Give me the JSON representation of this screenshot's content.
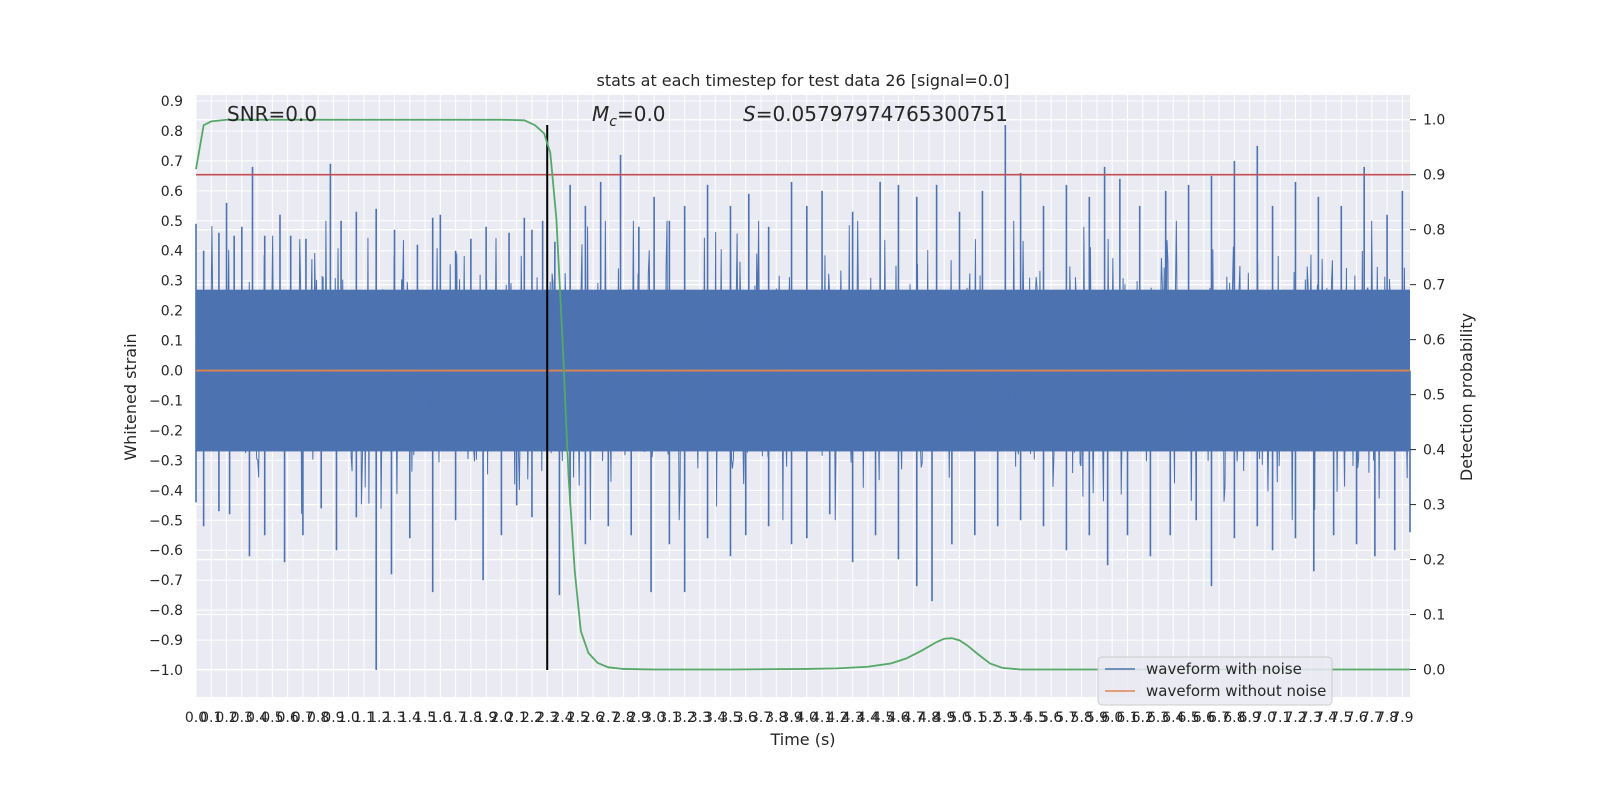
{
  "chart_data": {
    "type": "line",
    "title": "stats at each timestep for test data 26 [signal=0.0]",
    "xlabel": "Time (s)",
    "ylabel": "Whitened strain",
    "ylabel_right": "Detection probability",
    "xlim": [
      0.0,
      7.95
    ],
    "ylim": [
      -1.09,
      0.92
    ],
    "ylim_right": [
      -0.05,
      1.045
    ],
    "grid": true,
    "legend_position": "lower right",
    "x_ticks": [
      "0.0",
      "0.1",
      "0.2",
      "0.3",
      "0.4",
      "0.5",
      "0.6",
      "0.7",
      "0.8",
      "0.9",
      "1.0",
      "1.1",
      "1.2",
      "1.3",
      "1.4",
      "1.5",
      "1.6",
      "1.7",
      "1.8",
      "1.9",
      "2.0",
      "2.1",
      "2.2",
      "2.3",
      "2.4",
      "2.5",
      "2.6",
      "2.7",
      "2.8",
      "2.9",
      "3.0",
      "3.1",
      "3.2",
      "3.3",
      "3.4",
      "3.5",
      "3.6",
      "3.7",
      "3.8",
      "3.9",
      "4.0",
      "4.1",
      "4.2",
      "4.3",
      "4.4",
      "4.5",
      "4.6",
      "4.7",
      "4.8",
      "4.9",
      "5.0",
      "5.1",
      "5.2",
      "5.3",
      "5.4",
      "5.5",
      "5.6",
      "5.7",
      "5.8",
      "5.9",
      "6.0",
      "6.1",
      "6.2",
      "6.3",
      "6.4",
      "6.5",
      "6.6",
      "6.7",
      "6.8",
      "6.9",
      "7.0",
      "7.1",
      "7.2",
      "7.3",
      "7.4",
      "7.5",
      "7.6",
      "7.7",
      "7.8",
      "7.9"
    ],
    "y_ticks_left": [
      "0.9",
      "0.8",
      "0.7",
      "0.6",
      "0.5",
      "0.4",
      "0.3",
      "0.2",
      "0.1",
      "0.0",
      "−0.1",
      "−0.2",
      "−0.3",
      "−0.4",
      "−0.5",
      "−0.6",
      "−0.7",
      "−0.8",
      "−0.9",
      "−1.0"
    ],
    "y_ticks_right": [
      "1.0",
      "0.9",
      "0.8",
      "0.7",
      "0.6",
      "0.5",
      "0.4",
      "0.3",
      "0.2",
      "0.1",
      "0.0"
    ],
    "annotations": {
      "snr": "SNR=0.0",
      "mc_symbol": "M",
      "mc_sub": "c",
      "mc_value": "=0.0",
      "s_symbol": "S",
      "s_value": "=0.05797974765300751"
    },
    "threshold": {
      "axis": "right",
      "value": 0.9,
      "color": "#c44e52"
    },
    "marker_vline": {
      "x": 2.3,
      "y_from": -1.0,
      "y_to": 0.82,
      "color": "#000000"
    },
    "series": [
      {
        "name": "waveform with noise",
        "color": "#4c72b0",
        "axis": "left",
        "kind": "noise",
        "typical_amplitude": 0.27,
        "peak_max": [
          [
            0.0,
            0.49
          ],
          [
            0.05,
            0.4
          ],
          [
            0.15,
            0.46
          ],
          [
            0.2,
            0.56
          ],
          [
            0.25,
            0.45
          ],
          [
            0.3,
            0.48
          ],
          [
            0.37,
            0.68
          ],
          [
            0.45,
            0.45
          ],
          [
            0.55,
            0.52
          ],
          [
            0.62,
            0.45
          ],
          [
            0.72,
            0.44
          ],
          [
            0.88,
            0.69
          ],
          [
            0.95,
            0.5
          ],
          [
            1.05,
            0.53
          ],
          [
            1.18,
            0.54
          ],
          [
            1.3,
            0.47
          ],
          [
            1.45,
            0.42
          ],
          [
            1.55,
            0.51
          ],
          [
            1.6,
            0.52
          ],
          [
            1.7,
            0.4
          ],
          [
            1.8,
            0.44
          ],
          [
            1.9,
            0.48
          ],
          [
            2.05,
            0.46
          ],
          [
            2.15,
            0.51
          ],
          [
            2.2,
            0.47
          ],
          [
            2.27,
            0.5
          ],
          [
            2.35,
            0.43
          ],
          [
            2.45,
            0.62
          ],
          [
            2.55,
            0.55
          ],
          [
            2.65,
            0.63
          ],
          [
            2.78,
            0.72
          ],
          [
            2.9,
            0.48
          ],
          [
            3.0,
            0.58
          ],
          [
            3.1,
            0.5
          ],
          [
            3.2,
            0.55
          ],
          [
            3.35,
            0.62
          ],
          [
            3.5,
            0.55
          ],
          [
            3.62,
            0.59
          ],
          [
            3.75,
            0.48
          ],
          [
            3.9,
            0.63
          ],
          [
            4.0,
            0.55
          ],
          [
            4.1,
            0.6
          ],
          [
            4.3,
            0.53
          ],
          [
            4.48,
            0.63
          ],
          [
            4.6,
            0.62
          ],
          [
            4.72,
            0.58
          ],
          [
            4.85,
            0.62
          ],
          [
            5.0,
            0.53
          ],
          [
            5.15,
            0.6
          ],
          [
            5.3,
            0.82
          ],
          [
            5.4,
            0.66
          ],
          [
            5.55,
            0.55
          ],
          [
            5.7,
            0.62
          ],
          [
            5.85,
            0.58
          ],
          [
            5.95,
            0.68
          ],
          [
            6.05,
            0.64
          ],
          [
            6.18,
            0.55
          ],
          [
            6.35,
            0.6
          ],
          [
            6.5,
            0.62
          ],
          [
            6.65,
            0.65
          ],
          [
            6.8,
            0.7
          ],
          [
            6.95,
            0.75
          ],
          [
            7.05,
            0.55
          ],
          [
            7.2,
            0.63
          ],
          [
            7.35,
            0.58
          ],
          [
            7.5,
            0.55
          ],
          [
            7.65,
            0.68
          ],
          [
            7.8,
            0.52
          ],
          [
            7.9,
            0.6
          ]
        ],
        "peak_min": [
          [
            0.0,
            -0.44
          ],
          [
            0.05,
            -0.52
          ],
          [
            0.15,
            -0.47
          ],
          [
            0.22,
            -0.48
          ],
          [
            0.35,
            -0.62
          ],
          [
            0.45,
            -0.55
          ],
          [
            0.58,
            -0.64
          ],
          [
            0.7,
            -0.55
          ],
          [
            0.82,
            -0.46
          ],
          [
            0.92,
            -0.6
          ],
          [
            1.05,
            -0.49
          ],
          [
            1.18,
            -1.0
          ],
          [
            1.28,
            -0.68
          ],
          [
            1.4,
            -0.56
          ],
          [
            1.55,
            -0.74
          ],
          [
            1.7,
            -0.5
          ],
          [
            1.88,
            -0.7
          ],
          [
            2.0,
            -0.55
          ],
          [
            2.1,
            -0.45
          ],
          [
            2.2,
            -0.49
          ],
          [
            2.3,
            -0.48
          ],
          [
            2.38,
            -0.75
          ],
          [
            2.45,
            -0.45
          ],
          [
            2.55,
            -0.58
          ],
          [
            2.7,
            -0.52
          ],
          [
            2.85,
            -0.55
          ],
          [
            2.98,
            -0.74
          ],
          [
            3.1,
            -0.58
          ],
          [
            3.2,
            -0.74
          ],
          [
            3.35,
            -0.56
          ],
          [
            3.5,
            -0.62
          ],
          [
            3.6,
            -0.55
          ],
          [
            3.75,
            -0.52
          ],
          [
            3.9,
            -0.58
          ],
          [
            4.0,
            -0.56
          ],
          [
            4.15,
            -0.48
          ],
          [
            4.3,
            -0.64
          ],
          [
            4.45,
            -0.55
          ],
          [
            4.6,
            -0.63
          ],
          [
            4.72,
            -0.72
          ],
          [
            4.82,
            -0.77
          ],
          [
            4.95,
            -0.58
          ],
          [
            5.1,
            -0.55
          ],
          [
            5.25,
            -0.52
          ],
          [
            5.4,
            -0.5
          ],
          [
            5.55,
            -0.52
          ],
          [
            5.7,
            -0.6
          ],
          [
            5.85,
            -0.55
          ],
          [
            5.97,
            -0.65
          ],
          [
            6.1,
            -0.55
          ],
          [
            6.25,
            -0.62
          ],
          [
            6.38,
            -0.55
          ],
          [
            6.55,
            -0.5
          ],
          [
            6.65,
            -0.72
          ],
          [
            6.8,
            -0.56
          ],
          [
            6.95,
            -0.52
          ],
          [
            7.05,
            -0.6
          ],
          [
            7.2,
            -0.56
          ],
          [
            7.32,
            -0.67
          ],
          [
            7.45,
            -0.55
          ],
          [
            7.6,
            -0.58
          ],
          [
            7.72,
            -0.62
          ],
          [
            7.85,
            -0.6
          ],
          [
            7.95,
            -0.54
          ]
        ]
      },
      {
        "name": "waveform without noise",
        "color": "#dd8452",
        "axis": "left",
        "points": [
          [
            0.0,
            0.0
          ],
          [
            7.95,
            0.0
          ]
        ]
      },
      {
        "color": "#55a868",
        "axis": "right",
        "points": [
          [
            0.0,
            0.91
          ],
          [
            0.05,
            0.99
          ],
          [
            0.1,
            0.997
          ],
          [
            0.2,
            1.0
          ],
          [
            1.0,
            1.0
          ],
          [
            2.0,
            1.0
          ],
          [
            2.15,
            0.999
          ],
          [
            2.22,
            0.99
          ],
          [
            2.28,
            0.975
          ],
          [
            2.32,
            0.94
          ],
          [
            2.36,
            0.82
          ],
          [
            2.4,
            0.6
          ],
          [
            2.44,
            0.35
          ],
          [
            2.48,
            0.18
          ],
          [
            2.52,
            0.07
          ],
          [
            2.57,
            0.03
          ],
          [
            2.63,
            0.012
          ],
          [
            2.7,
            0.004
          ],
          [
            2.8,
            0.001
          ],
          [
            3.0,
            0.0
          ],
          [
            3.5,
            0.0
          ],
          [
            4.0,
            0.001
          ],
          [
            4.2,
            0.002
          ],
          [
            4.4,
            0.005
          ],
          [
            4.55,
            0.011
          ],
          [
            4.65,
            0.02
          ],
          [
            4.75,
            0.034
          ],
          [
            4.85,
            0.05
          ],
          [
            4.9,
            0.056
          ],
          [
            4.95,
            0.057
          ],
          [
            5.0,
            0.053
          ],
          [
            5.05,
            0.044
          ],
          [
            5.12,
            0.028
          ],
          [
            5.2,
            0.011
          ],
          [
            5.28,
            0.003
          ],
          [
            5.4,
            0.0
          ],
          [
            6.0,
            0.0
          ],
          [
            7.0,
            0.0
          ],
          [
            7.95,
            0.0
          ]
        ]
      }
    ]
  }
}
